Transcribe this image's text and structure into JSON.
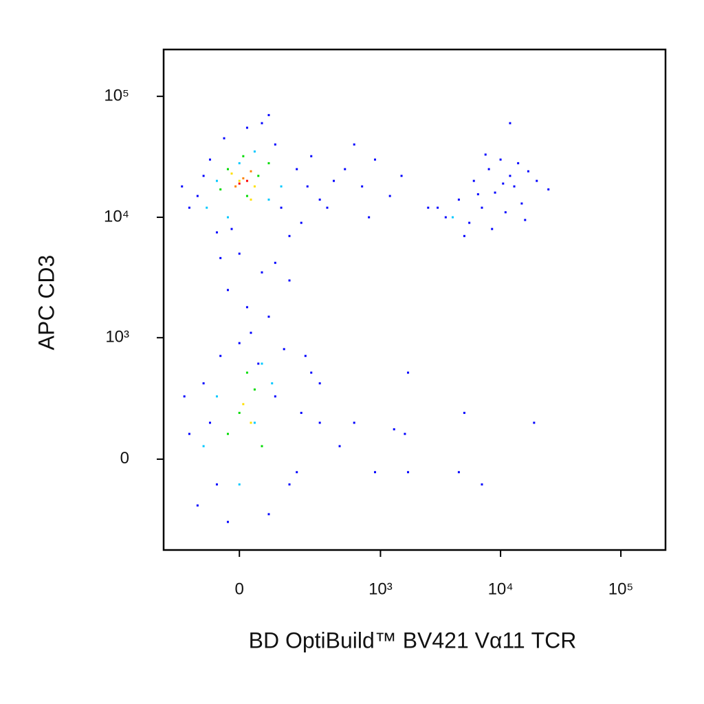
{
  "chart_data": {
    "type": "scatter",
    "x_label": "BD OptiBuild™ BV421 Vα11 TCR",
    "y_label": "APC CD3",
    "x_scale": "biexponential",
    "y_scale": "biexponential",
    "xlim": [
      -272,
      235000
    ],
    "ylim": [
      -546,
      244000
    ],
    "xticks": [
      0,
      {
        "value": 1000,
        "label": "10³"
      },
      {
        "value": 10000,
        "label": "10⁴"
      },
      {
        "value": 100000,
        "label": "10⁵"
      }
    ],
    "yticks": [
      0,
      {
        "value": 1000,
        "label": "10³"
      },
      {
        "value": 10000,
        "label": "10⁴"
      },
      {
        "value": 100000,
        "label": "10⁵"
      }
    ],
    "series": [
      {
        "color": "#0000ff",
        "x": [
          -120,
          -80,
          -40,
          20,
          100,
          180,
          230,
          200,
          150,
          -60,
          -150,
          -100,
          60,
          250,
          -20,
          120,
          300,
          400,
          -180,
          80,
          0,
          60,
          -30,
          100,
          20,
          150,
          -50,
          80,
          -150,
          -100,
          -50,
          0,
          50,
          100,
          150,
          200,
          250,
          -120,
          -30,
          80,
          130,
          180,
          -80,
          30,
          220,
          -170,
          300,
          -60,
          500,
          700,
          900,
          1200,
          1500,
          2500,
          600,
          350,
          800,
          450,
          600,
          1600,
          1700,
          5000,
          4500,
          7000,
          19000,
          900,
          1300,
          1700,
          300,
          3500,
          4500,
          5500,
          6000,
          7000,
          8000,
          9000,
          10000,
          11000,
          12000,
          13000,
          14000,
          15000,
          17000,
          20000,
          25000,
          5000,
          8500,
          12000,
          3000,
          7500,
          10500,
          16000,
          6500
        ],
        "y": [
          15000,
          30000,
          45000,
          55000,
          40000,
          25000,
          18000,
          9000,
          7000,
          7500,
          12000,
          22000,
          60000,
          32000,
          8000,
          12000,
          14000,
          20000,
          18000,
          70000,
          5000,
          3500,
          2500,
          4200,
          1800,
          3000,
          4600,
          1500,
          100,
          400,
          700,
          900,
          600,
          300,
          -100,
          200,
          500,
          -200,
          -300,
          -250,
          800,
          -50,
          150,
          1100,
          700,
          300,
          150,
          -100,
          25000,
          18000,
          30000,
          15000,
          22000,
          12000,
          40000,
          12000,
          10000,
          50,
          150,
          100,
          -50,
          200,
          -50,
          -100,
          150,
          -50,
          120,
          500,
          400,
          10000,
          14000,
          9000,
          20000,
          12000,
          25000,
          16000,
          30000,
          11000,
          22000,
          18000,
          28000,
          13000,
          24000,
          20000,
          17000,
          7000,
          8000,
          60000,
          12000,
          33000,
          19000,
          9500,
          15500
        ]
      },
      {
        "color": "#00c8ff",
        "x": [
          -60,
          40,
          120,
          -90,
          80,
          0,
          -30,
          -60,
          40,
          90,
          0,
          -100,
          60,
          4000
        ],
        "y": [
          20000,
          35000,
          18000,
          12000,
          14000,
          28000,
          10000,
          300,
          150,
          400,
          -100,
          50,
          600,
          10000
        ]
      },
      {
        "color": "#00dc00",
        "x": [
          -30,
          50,
          20,
          -50,
          80,
          10,
          0,
          40,
          -30,
          60,
          20
        ],
        "y": [
          25000,
          22000,
          15000,
          17000,
          28000,
          32000,
          200,
          350,
          100,
          50,
          500
        ]
      },
      {
        "color": "#ffe000",
        "x": [
          0,
          40,
          -20,
          30,
          10,
          30
        ],
        "y": [
          20000,
          18000,
          23000,
          14000,
          250,
          150
        ]
      },
      {
        "color": "#ff8000",
        "x": [
          10,
          -10,
          30
        ],
        "y": [
          21000,
          18000,
          24000
        ]
      },
      {
        "color": "#ff0000",
        "x": [
          0,
          20
        ],
        "y": [
          19000,
          20000
        ]
      }
    ]
  }
}
